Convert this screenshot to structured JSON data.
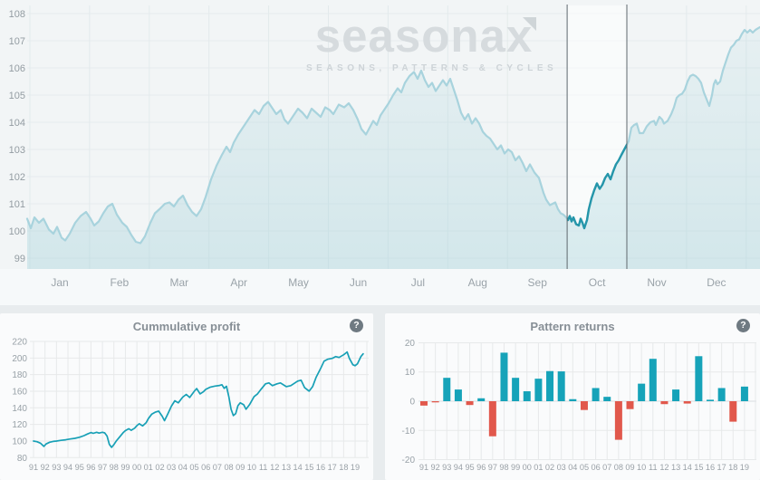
{
  "watermark": {
    "brand": "seasonax",
    "tagline": "SEASONS, PATTERNS & CYCLES"
  },
  "help_glyph": "?",
  "panels": {
    "cumulative": {
      "title": "Cummulative profit"
    },
    "pattern": {
      "title": "Pattern returns"
    }
  },
  "chart_data": [
    {
      "id": "seasonal-pattern",
      "type": "line",
      "months": [
        "Jan",
        "Feb",
        "Mar",
        "Apr",
        "May",
        "Jun",
        "Jul",
        "Aug",
        "Sep",
        "Oct",
        "Nov",
        "Dec"
      ],
      "ylim": [
        99,
        108
      ],
      "yticks": [
        99,
        100,
        101,
        102,
        103,
        104,
        105,
        106,
        107,
        108
      ],
      "grid": true,
      "highlight_band": {
        "month": "Oct",
        "month_index": 9
      },
      "colors": {
        "line_outside": "#a8d3dd",
        "line_inside": "#2596aa",
        "band_edge": "#5f686e",
        "area": "#a7d3db"
      },
      "points": [
        [
          30,
          100.45
        ],
        [
          34,
          100.1
        ],
        [
          38,
          100.5
        ],
        [
          43,
          100.3
        ],
        [
          48,
          100.45
        ],
        [
          54,
          100.05
        ],
        [
          59,
          99.9
        ],
        [
          63,
          100.15
        ],
        [
          68,
          99.75
        ],
        [
          72,
          99.65
        ],
        [
          77,
          99.9
        ],
        [
          83,
          100.3
        ],
        [
          89,
          100.55
        ],
        [
          95,
          100.7
        ],
        [
          100,
          100.45
        ],
        [
          104,
          100.2
        ],
        [
          109,
          100.35
        ],
        [
          114,
          100.65
        ],
        [
          119,
          100.9
        ],
        [
          124,
          101.0
        ],
        [
          129,
          100.6
        ],
        [
          135,
          100.3
        ],
        [
          140,
          100.15
        ],
        [
          145,
          99.85
        ],
        [
          150,
          99.6
        ],
        [
          155,
          99.55
        ],
        [
          160,
          99.8
        ],
        [
          166,
          100.3
        ],
        [
          171,
          100.65
        ],
        [
          176,
          100.8
        ],
        [
          182,
          101.0
        ],
        [
          187,
          101.05
        ],
        [
          192,
          100.9
        ],
        [
          197,
          101.15
        ],
        [
          202,
          101.3
        ],
        [
          207,
          100.95
        ],
        [
          212,
          100.7
        ],
        [
          217,
          100.55
        ],
        [
          222,
          100.8
        ],
        [
          227,
          101.25
        ],
        [
          233,
          101.9
        ],
        [
          239,
          102.4
        ],
        [
          245,
          102.8
        ],
        [
          250,
          103.1
        ],
        [
          254,
          102.9
        ],
        [
          258,
          103.25
        ],
        [
          263,
          103.55
        ],
        [
          269,
          103.85
        ],
        [
          275,
          104.15
        ],
        [
          281,
          104.45
        ],
        [
          286,
          104.3
        ],
        [
          291,
          104.6
        ],
        [
          296,
          104.75
        ],
        [
          301,
          104.5
        ],
        [
          305,
          104.3
        ],
        [
          310,
          104.45
        ],
        [
          314,
          104.1
        ],
        [
          318,
          103.95
        ],
        [
          323,
          104.2
        ],
        [
          329,
          104.5
        ],
        [
          334,
          104.35
        ],
        [
          339,
          104.15
        ],
        [
          344,
          104.5
        ],
        [
          349,
          104.35
        ],
        [
          354,
          104.2
        ],
        [
          359,
          104.55
        ],
        [
          364,
          104.45
        ],
        [
          368,
          104.3
        ],
        [
          374,
          104.65
        ],
        [
          380,
          104.55
        ],
        [
          385,
          104.7
        ],
        [
          390,
          104.45
        ],
        [
          395,
          104.1
        ],
        [
          399,
          103.75
        ],
        [
          404,
          103.55
        ],
        [
          408,
          103.8
        ],
        [
          412,
          104.05
        ],
        [
          416,
          103.9
        ],
        [
          420,
          104.25
        ],
        [
          425,
          104.5
        ],
        [
          429,
          104.7
        ],
        [
          434,
          105.0
        ],
        [
          439,
          105.25
        ],
        [
          443,
          105.1
        ],
        [
          447,
          105.45
        ],
        [
          452,
          105.7
        ],
        [
          457,
          105.85
        ],
        [
          461,
          105.6
        ],
        [
          465,
          105.9
        ],
        [
          469,
          105.55
        ],
        [
          473,
          105.3
        ],
        [
          477,
          105.45
        ],
        [
          481,
          105.15
        ],
        [
          485,
          105.35
        ],
        [
          489,
          105.55
        ],
        [
          493,
          105.35
        ],
        [
          497,
          105.6
        ],
        [
          501,
          105.2
        ],
        [
          505,
          104.8
        ],
        [
          509,
          104.35
        ],
        [
          513,
          104.1
        ],
        [
          517,
          104.3
        ],
        [
          521,
          103.95
        ],
        [
          525,
          104.15
        ],
        [
          529,
          103.95
        ],
        [
          533,
          103.65
        ],
        [
          537,
          103.5
        ],
        [
          541,
          103.4
        ],
        [
          545,
          103.2
        ],
        [
          549,
          103.0
        ],
        [
          553,
          103.15
        ],
        [
          557,
          102.85
        ],
        [
          561,
          103.0
        ],
        [
          565,
          102.9
        ],
        [
          569,
          102.6
        ],
        [
          573,
          102.75
        ],
        [
          577,
          102.5
        ],
        [
          581,
          102.2
        ],
        [
          585,
          102.45
        ],
        [
          590,
          102.15
        ],
        [
          595,
          101.95
        ],
        [
          600,
          101.4
        ],
        [
          603,
          101.15
        ],
        [
          607,
          100.95
        ],
        [
          610,
          101.0
        ],
        [
          613,
          101.05
        ],
        [
          616,
          100.8
        ],
        [
          619,
          100.65
        ],
        [
          622,
          100.6
        ],
        [
          625,
          100.5
        ],
        [
          627,
          100.4
        ],
        [
          629,
          100.55
        ],
        [
          631,
          100.35
        ],
        [
          633,
          100.5
        ],
        [
          636,
          100.25
        ],
        [
          639,
          100.2
        ],
        [
          641,
          100.45
        ],
        [
          643,
          100.3
        ],
        [
          645,
          100.1
        ],
        [
          648,
          100.4
        ],
        [
          650,
          100.8
        ],
        [
          653,
          101.2
        ],
        [
          656,
          101.5
        ],
        [
          659,
          101.75
        ],
        [
          662,
          101.55
        ],
        [
          665,
          101.7
        ],
        [
          668,
          101.95
        ],
        [
          671,
          102.1
        ],
        [
          674,
          101.9
        ],
        [
          677,
          102.2
        ],
        [
          680,
          102.45
        ],
        [
          683,
          102.6
        ],
        [
          686,
          102.8
        ],
        [
          690,
          103.05
        ],
        [
          694,
          103.3
        ],
        [
          697,
          103.8
        ],
        [
          700,
          103.9
        ],
        [
          703,
          103.95
        ],
        [
          706,
          103.6
        ],
        [
          710,
          103.6
        ],
        [
          714,
          103.85
        ],
        [
          718,
          104.0
        ],
        [
          722,
          104.05
        ],
        [
          724,
          103.9
        ],
        [
          728,
          104.2
        ],
        [
          731,
          104.1
        ],
        [
          733,
          103.95
        ],
        [
          737,
          104.05
        ],
        [
          741,
          104.3
        ],
        [
          744,
          104.55
        ],
        [
          747,
          104.9
        ],
        [
          750,
          105.0
        ],
        [
          753,
          105.05
        ],
        [
          756,
          105.2
        ],
        [
          759,
          105.5
        ],
        [
          762,
          105.7
        ],
        [
          765,
          105.75
        ],
        [
          768,
          105.7
        ],
        [
          771,
          105.6
        ],
        [
          774,
          105.45
        ],
        [
          777,
          105.1
        ],
        [
          780,
          104.85
        ],
        [
          783,
          104.6
        ],
        [
          786,
          105.0
        ],
        [
          788,
          105.4
        ],
        [
          790,
          105.55
        ],
        [
          792,
          105.4
        ],
        [
          795,
          105.5
        ],
        [
          798,
          105.9
        ],
        [
          801,
          106.2
        ],
        [
          804,
          106.5
        ],
        [
          807,
          106.75
        ],
        [
          810,
          106.85
        ],
        [
          813,
          107.0
        ],
        [
          816,
          107.05
        ],
        [
          819,
          107.25
        ],
        [
          822,
          107.4
        ],
        [
          825,
          107.3
        ],
        [
          828,
          107.4
        ],
        [
          831,
          107.3
        ],
        [
          834,
          107.4
        ],
        [
          839,
          107.5
        ]
      ]
    },
    {
      "id": "cumulative-profit",
      "type": "line",
      "title": "Cummulative profit",
      "categories": [
        "91",
        "92",
        "93",
        "94",
        "95",
        "96",
        "97",
        "98",
        "99",
        "00",
        "01",
        "02",
        "03",
        "04",
        "05",
        "06",
        "07",
        "08",
        "09",
        "10",
        "11",
        "12",
        "13",
        "14",
        "15",
        "16",
        "17",
        "18",
        "19"
      ],
      "ylim": [
        80,
        220
      ],
      "yticks": [
        80,
        100,
        120,
        140,
        160,
        180,
        200,
        220
      ],
      "grid": true,
      "line_color": "#18a0b6",
      "points": [
        [
          0,
          100
        ],
        [
          0.3,
          99.2
        ],
        [
          0.6,
          97.5
        ],
        [
          0.9,
          93.5
        ],
        [
          1.1,
          96.5
        ],
        [
          1.4,
          98.5
        ],
        [
          1.7,
          99.5
        ],
        [
          2,
          100
        ],
        [
          2.4,
          100.8
        ],
        [
          2.8,
          101.5
        ],
        [
          3.2,
          102.5
        ],
        [
          3.6,
          103.2
        ],
        [
          4,
          104.5
        ],
        [
          4.4,
          106.5
        ],
        [
          4.7,
          108.5
        ],
        [
          5,
          110.2
        ],
        [
          5.2,
          109.2
        ],
        [
          5.5,
          110.5
        ],
        [
          5.7,
          109.6
        ],
        [
          6,
          110.6
        ],
        [
          6.2,
          109.8
        ],
        [
          6.4,
          106
        ],
        [
          6.6,
          96
        ],
        [
          6.8,
          92.3
        ],
        [
          7,
          95.8
        ],
        [
          7.2,
          100
        ],
        [
          7.5,
          105
        ],
        [
          7.8,
          110
        ],
        [
          8,
          112.5
        ],
        [
          8.3,
          114.8
        ],
        [
          8.5,
          113
        ],
        [
          8.8,
          115.5
        ],
        [
          9,
          118.5
        ],
        [
          9.2,
          120.8
        ],
        [
          9.5,
          118.2
        ],
        [
          9.8,
          122
        ],
        [
          10,
          127
        ],
        [
          10.3,
          132.5
        ],
        [
          10.6,
          134.8
        ],
        [
          10.9,
          136
        ],
        [
          11.2,
          130
        ],
        [
          11.4,
          124.5
        ],
        [
          11.7,
          133
        ],
        [
          12,
          142
        ],
        [
          12.3,
          148.5
        ],
        [
          12.6,
          146
        ],
        [
          13,
          153
        ],
        [
          13.3,
          156.2
        ],
        [
          13.6,
          152.5
        ],
        [
          14,
          160
        ],
        [
          14.2,
          163.3
        ],
        [
          14.5,
          156.8
        ],
        [
          14.8,
          159.5
        ],
        [
          15,
          162.3
        ],
        [
          15.4,
          165
        ],
        [
          15.8,
          166.2
        ],
        [
          16.2,
          167
        ],
        [
          16.4,
          167.8
        ],
        [
          16.6,
          163.5
        ],
        [
          16.8,
          166
        ],
        [
          17,
          153.5
        ],
        [
          17.2,
          138.3
        ],
        [
          17.4,
          130.6
        ],
        [
          17.6,
          133
        ],
        [
          17.8,
          142.6
        ],
        [
          18,
          146
        ],
        [
          18.3,
          143.7
        ],
        [
          18.5,
          138.3
        ],
        [
          18.8,
          143.7
        ],
        [
          19.2,
          153.5
        ],
        [
          19.5,
          156.8
        ],
        [
          19.8,
          162.3
        ],
        [
          20.2,
          168.9
        ],
        [
          20.5,
          170
        ],
        [
          20.8,
          166.7
        ],
        [
          21.2,
          168.9
        ],
        [
          21.5,
          170
        ],
        [
          22,
          165.6
        ],
        [
          22.4,
          166.7
        ],
        [
          23,
          172.2
        ],
        [
          23.3,
          173.3
        ],
        [
          23.6,
          164.5
        ],
        [
          24,
          160.1
        ],
        [
          24.3,
          165.6
        ],
        [
          24.6,
          176.6
        ],
        [
          25,
          187.5
        ],
        [
          25.3,
          196.3
        ],
        [
          25.6,
          198.5
        ],
        [
          26,
          199.6
        ],
        [
          26.3,
          201.8
        ],
        [
          26.6,
          200.7
        ],
        [
          27,
          204
        ],
        [
          27.3,
          207.2
        ],
        [
          27.5,
          199.6
        ],
        [
          27.8,
          192
        ],
        [
          28,
          190.8
        ],
        [
          28.2,
          193
        ],
        [
          28.5,
          201.8
        ],
        [
          28.7,
          205.1
        ]
      ]
    },
    {
      "id": "pattern-returns",
      "type": "bar",
      "title": "Pattern returns",
      "categories": [
        "91",
        "92",
        "93",
        "94",
        "95",
        "96",
        "97",
        "98",
        "99",
        "00",
        "01",
        "02",
        "03",
        "04",
        "05",
        "06",
        "07",
        "08",
        "09",
        "10",
        "11",
        "12",
        "13",
        "14",
        "15",
        "16",
        "17",
        "18",
        "19"
      ],
      "ylim": [
        -20,
        20
      ],
      "yticks": [
        -20,
        -10,
        0,
        10,
        20
      ],
      "grid": true,
      "pos_color": "#16a3b9",
      "neg_color": "#e1584c",
      "values": [
        -1.5,
        -0.4,
        8,
        4,
        -1.3,
        1,
        -12,
        16.6,
        8,
        3.4,
        7.7,
        10.3,
        10.2,
        0.7,
        -3,
        4.5,
        1.5,
        -13.2,
        -2.7,
        6,
        14.5,
        -1,
        4,
        -0.8,
        15.4,
        0.5,
        4.5,
        -7,
        5
      ]
    }
  ]
}
